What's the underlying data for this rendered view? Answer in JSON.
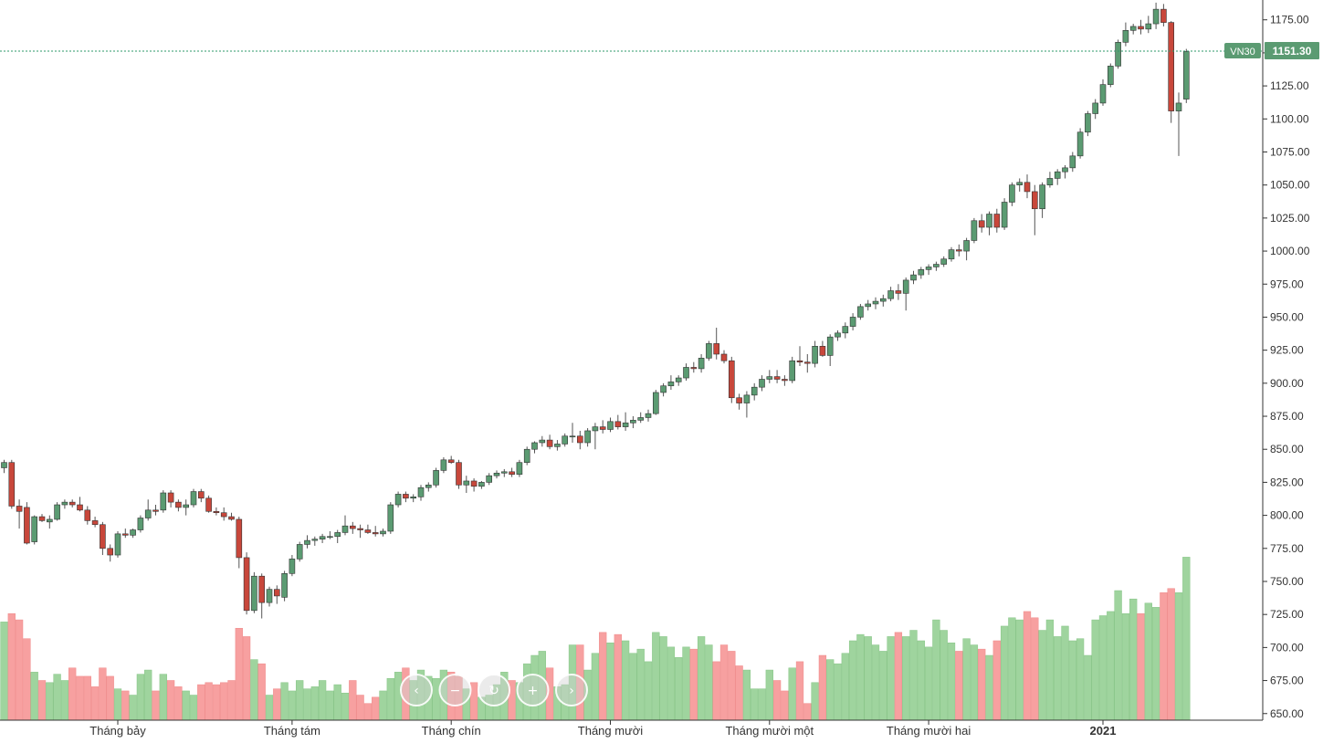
{
  "chart_data": {
    "type": "candlestick",
    "symbol": "VN30",
    "last_price": "1151.30",
    "last_price_value": 1151.3,
    "up_color": "#5b9b72",
    "down_color": "#c8473b",
    "volume_up_color": "#9fd49e",
    "volume_down_color": "#f7a0a0",
    "price_line_color": "#2e9a6a",
    "ylim": [
      645,
      1190
    ],
    "y_ticks": [
      "650.00",
      "675.00",
      "700.00",
      "725.00",
      "750.00",
      "775.00",
      "800.00",
      "825.00",
      "850.00",
      "875.00",
      "900.00",
      "925.00",
      "950.00",
      "975.00",
      "1000.00",
      "1025.00",
      "1050.00",
      "1075.00",
      "1100.00",
      "1125.00",
      "1150.00",
      "1175.00"
    ],
    "x_labels": [
      {
        "text": "Tháng bảy",
        "bar": 15,
        "bold": false
      },
      {
        "text": "Tháng tám",
        "bar": 38,
        "bold": false
      },
      {
        "text": "Tháng chín",
        "bar": 59,
        "bold": false
      },
      {
        "text": "Tháng mười",
        "bar": 80,
        "bold": false
      },
      {
        "text": "Tháng mười một",
        "bar": 101,
        "bold": false
      },
      {
        "text": "Tháng mười hai",
        "bar": 122,
        "bold": false
      },
      {
        "text": "2021",
        "bar": 145,
        "bold": true
      }
    ],
    "volume_scale_max": 1.0,
    "candles": [
      [
        836,
        842,
        832,
        840,
        0.47
      ],
      [
        840,
        842,
        805,
        807,
        0.51
      ],
      [
        807,
        812,
        790,
        803,
        0.48
      ],
      [
        806,
        810,
        778,
        779,
        0.39
      ],
      [
        780,
        800,
        778,
        799,
        0.23
      ],
      [
        799,
        801,
        795,
        796,
        0.19
      ],
      [
        795,
        800,
        790,
        797,
        0.18
      ],
      [
        797,
        810,
        796,
        808,
        0.22
      ],
      [
        808,
        812,
        805,
        810,
        0.19
      ],
      [
        810,
        812,
        806,
        808,
        0.25
      ],
      [
        808,
        814,
        803,
        804,
        0.21
      ],
      [
        804,
        807,
        793,
        796,
        0.21
      ],
      [
        796,
        799,
        791,
        793,
        0.16
      ],
      [
        793,
        795,
        770,
        775,
        0.25
      ],
      [
        775,
        778,
        765,
        770,
        0.21
      ],
      [
        770,
        788,
        768,
        786,
        0.15
      ],
      [
        786,
        790,
        783,
        785,
        0.14
      ],
      [
        785,
        790,
        783,
        789,
        0.12
      ],
      [
        789,
        800,
        787,
        798,
        0.22
      ],
      [
        798,
        812,
        796,
        804,
        0.24
      ],
      [
        804,
        808,
        800,
        803,
        0.14
      ],
      [
        804,
        819,
        802,
        817,
        0.22
      ],
      [
        817,
        819,
        806,
        810,
        0.19
      ],
      [
        810,
        812,
        803,
        806,
        0.16
      ],
      [
        806,
        812,
        800,
        808,
        0.14
      ],
      [
        808,
        820,
        806,
        818,
        0.12
      ],
      [
        818,
        820,
        810,
        813,
        0.17
      ],
      [
        813,
        815,
        802,
        803,
        0.18
      ],
      [
        803,
        806,
        800,
        802,
        0.17
      ],
      [
        802,
        806,
        796,
        799,
        0.18
      ],
      [
        799,
        802,
        796,
        797,
        0.19
      ],
      [
        797,
        799,
        760,
        768,
        0.44
      ],
      [
        768,
        772,
        725,
        728,
        0.4
      ],
      [
        728,
        757,
        726,
        754,
        0.29
      ],
      [
        754,
        756,
        722,
        734,
        0.27
      ],
      [
        734,
        746,
        731,
        744,
        0.12
      ],
      [
        744,
        747,
        733,
        739,
        0.15
      ],
      [
        738,
        758,
        735,
        756,
        0.18
      ],
      [
        756,
        770,
        754,
        767,
        0.14
      ],
      [
        767,
        780,
        765,
        778,
        0.19
      ],
      [
        778,
        785,
        775,
        781,
        0.15
      ],
      [
        781,
        784,
        777,
        782,
        0.16
      ],
      [
        782,
        786,
        779,
        784,
        0.19
      ],
      [
        784,
        788,
        782,
        784,
        0.14
      ],
      [
        784,
        789,
        779,
        787,
        0.17
      ],
      [
        787,
        800,
        785,
        792,
        0.13
      ],
      [
        792,
        795,
        786,
        790,
        0.19
      ],
      [
        790,
        793,
        783,
        789,
        0.12
      ],
      [
        789,
        793,
        786,
        787,
        0.08
      ],
      [
        787,
        792,
        784,
        786,
        0.11
      ],
      [
        786,
        790,
        784,
        788,
        0.14
      ],
      [
        788,
        810,
        786,
        808,
        0.2
      ],
      [
        808,
        818,
        806,
        816,
        0.23
      ],
      [
        816,
        818,
        810,
        813,
        0.25
      ],
      [
        813,
        816,
        810,
        814,
        0.19
      ],
      [
        814,
        823,
        811,
        821,
        0.24
      ],
      [
        821,
        825,
        818,
        823,
        0.21
      ],
      [
        823,
        836,
        821,
        834,
        0.2
      ],
      [
        834,
        844,
        832,
        842,
        0.24
      ],
      [
        842,
        845,
        839,
        840,
        0.23
      ],
      [
        840,
        842,
        820,
        823,
        0.21
      ],
      [
        823,
        830,
        817,
        826,
        0.15
      ],
      [
        826,
        828,
        818,
        822,
        0.18
      ],
      [
        822,
        826,
        820,
        825,
        0.11
      ],
      [
        825,
        832,
        823,
        830,
        0.12
      ],
      [
        830,
        834,
        828,
        832,
        0.17
      ],
      [
        832,
        835,
        829,
        833,
        0.23
      ],
      [
        833,
        836,
        829,
        831,
        0.19
      ],
      [
        831,
        842,
        829,
        840,
        0.18
      ],
      [
        840,
        852,
        838,
        850,
        0.27
      ],
      [
        850,
        856,
        847,
        855,
        0.31
      ],
      [
        855,
        860,
        852,
        857,
        0.33
      ],
      [
        857,
        861,
        850,
        852,
        0.25
      ],
      [
        852,
        857,
        849,
        854,
        0.16
      ],
      [
        854,
        862,
        852,
        860,
        0.17
      ],
      [
        860,
        870,
        855,
        860,
        0.36
      ],
      [
        860,
        864,
        850,
        855,
        0.36
      ],
      [
        855,
        866,
        852,
        864,
        0.24
      ],
      [
        864,
        870,
        850,
        867,
        0.32
      ],
      [
        867,
        872,
        862,
        865,
        0.42
      ],
      [
        865,
        874,
        863,
        871,
        0.37
      ],
      [
        871,
        876,
        865,
        867,
        0.41
      ],
      [
        867,
        878,
        864,
        870,
        0.38
      ],
      [
        870,
        875,
        866,
        872,
        0.32
      ],
      [
        872,
        878,
        870,
        874,
        0.34
      ],
      [
        874,
        880,
        871,
        877,
        0.28
      ],
      [
        877,
        895,
        876,
        893,
        0.42
      ],
      [
        893,
        900,
        890,
        898,
        0.4
      ],
      [
        898,
        906,
        895,
        901,
        0.35
      ],
      [
        901,
        906,
        898,
        904,
        0.3
      ],
      [
        904,
        915,
        902,
        912,
        0.35
      ],
      [
        912,
        916,
        908,
        911,
        0.34
      ],
      [
        911,
        922,
        908,
        919,
        0.4
      ],
      [
        919,
        932,
        917,
        930,
        0.36
      ],
      [
        930,
        942,
        918,
        922,
        0.28
      ],
      [
        922,
        925,
        915,
        917,
        0.36
      ],
      [
        917,
        920,
        885,
        889,
        0.33
      ],
      [
        889,
        892,
        880,
        885,
        0.26
      ],
      [
        885,
        894,
        874,
        891,
        0.24
      ],
      [
        891,
        900,
        887,
        897,
        0.15
      ],
      [
        897,
        906,
        894,
        903,
        0.15
      ],
      [
        903,
        910,
        900,
        905,
        0.24
      ],
      [
        905,
        910,
        900,
        903,
        0.19
      ],
      [
        903,
        906,
        898,
        902,
        0.14
      ],
      [
        902,
        920,
        900,
        917,
        0.25
      ],
      [
        917,
        928,
        913,
        916,
        0.28
      ],
      [
        916,
        922,
        908,
        915,
        0.08
      ],
      [
        915,
        932,
        912,
        928,
        0.18
      ],
      [
        928,
        932,
        920,
        921,
        0.31
      ],
      [
        921,
        937,
        913,
        935,
        0.29
      ],
      [
        935,
        940,
        932,
        938,
        0.27
      ],
      [
        938,
        946,
        934,
        943,
        0.32
      ],
      [
        943,
        953,
        940,
        950,
        0.38
      ],
      [
        950,
        960,
        948,
        958,
        0.41
      ],
      [
        958,
        963,
        955,
        960,
        0.4
      ],
      [
        960,
        965,
        956,
        962,
        0.36
      ],
      [
        962,
        967,
        958,
        964,
        0.33
      ],
      [
        964,
        973,
        962,
        970,
        0.4
      ],
      [
        970,
        975,
        963,
        968,
        0.42
      ],
      [
        968,
        980,
        955,
        978,
        0.4
      ],
      [
        978,
        985,
        975,
        982,
        0.43
      ],
      [
        982,
        988,
        979,
        986,
        0.38
      ],
      [
        986,
        990,
        982,
        988,
        0.35
      ],
      [
        988,
        992,
        985,
        990,
        0.48
      ],
      [
        990,
        996,
        988,
        994,
        0.43
      ],
      [
        994,
        1003,
        992,
        1001,
        0.37
      ],
      [
        1001,
        1005,
        996,
        1000,
        0.33
      ],
      [
        1000,
        1010,
        993,
        1008,
        0.39
      ],
      [
        1008,
        1025,
        1006,
        1023,
        0.36
      ],
      [
        1023,
        1028,
        1014,
        1018,
        0.34
      ],
      [
        1018,
        1030,
        1012,
        1028,
        0.31
      ],
      [
        1028,
        1032,
        1014,
        1018,
        0.38
      ],
      [
        1018,
        1040,
        1016,
        1037,
        0.45
      ],
      [
        1037,
        1052,
        1034,
        1050,
        0.49
      ],
      [
        1050,
        1055,
        1045,
        1052,
        0.48
      ],
      [
        1052,
        1058,
        1040,
        1045,
        0.52
      ],
      [
        1045,
        1050,
        1012,
        1032,
        0.49
      ],
      [
        1032,
        1052,
        1025,
        1050,
        0.43
      ],
      [
        1050,
        1060,
        1048,
        1055,
        0.48
      ],
      [
        1055,
        1062,
        1050,
        1060,
        0.4
      ],
      [
        1060,
        1065,
        1055,
        1063,
        0.45
      ],
      [
        1063,
        1075,
        1060,
        1072,
        0.38
      ],
      [
        1072,
        1093,
        1070,
        1090,
        0.39
      ],
      [
        1090,
        1106,
        1087,
        1104,
        0.31
      ],
      [
        1104,
        1115,
        1100,
        1112,
        0.48
      ],
      [
        1112,
        1130,
        1110,
        1126,
        0.5
      ],
      [
        1126,
        1142,
        1124,
        1140,
        0.52
      ],
      [
        1140,
        1160,
        1138,
        1158,
        0.62
      ],
      [
        1158,
        1173,
        1155,
        1167,
        0.51
      ],
      [
        1167,
        1172,
        1164,
        1170,
        0.58
      ],
      [
        1170,
        1175,
        1164,
        1168,
        0.51
      ],
      [
        1168,
        1178,
        1165,
        1172,
        0.56
      ],
      [
        1172,
        1188,
        1168,
        1183,
        0.54
      ],
      [
        1183,
        1187,
        1170,
        1173,
        0.61
      ],
      [
        1173,
        1174,
        1097,
        1106,
        0.63
      ],
      [
        1106,
        1120,
        1072,
        1112,
        0.61
      ],
      [
        1115,
        1153,
        1112,
        1151,
        0.78
      ]
    ]
  },
  "navigator": {
    "buttons": [
      {
        "name": "scroll-left-button",
        "glyph": "‹"
      },
      {
        "name": "zoom-out-button",
        "glyph": "−"
      },
      {
        "name": "reset-zoom-button",
        "glyph": "↻"
      },
      {
        "name": "zoom-in-button",
        "glyph": "+"
      },
      {
        "name": "scroll-right-button",
        "glyph": "›"
      }
    ]
  }
}
